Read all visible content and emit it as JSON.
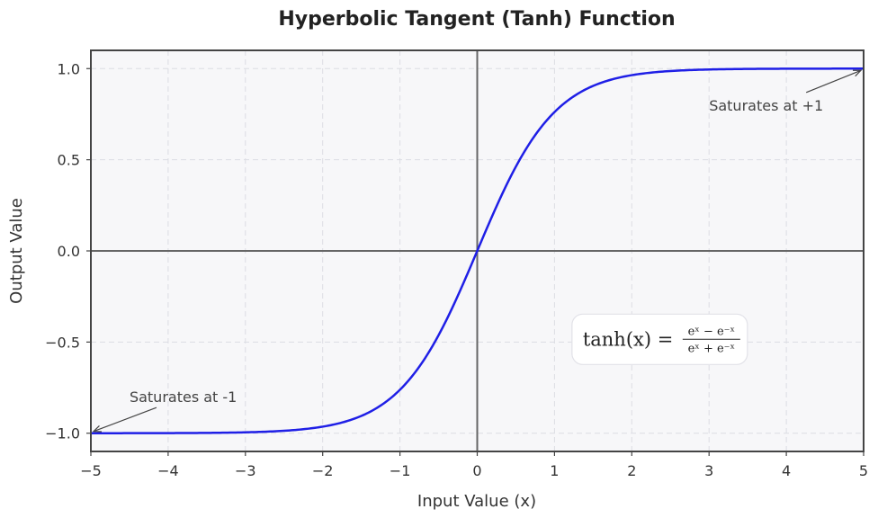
{
  "chart_data": {
    "type": "line",
    "title": "Hyperbolic Tangent (Tanh) Function",
    "xlabel": "Input Value (x)",
    "ylabel": "Output Value",
    "xlim": [
      -5,
      5
    ],
    "ylim": [
      -1.1,
      1.1
    ],
    "x_ticks": [
      -5,
      -4,
      -3,
      -2,
      -1,
      0,
      1,
      2,
      3,
      4,
      5
    ],
    "x_tick_labels": [
      "−5",
      "−4",
      "−3",
      "−2",
      "−1",
      "0",
      "1",
      "2",
      "3",
      "4",
      "5"
    ],
    "y_ticks": [
      1.0,
      0.5,
      0.0,
      -0.5,
      -1.0
    ],
    "y_tick_labels": [
      "1.0",
      "0.5",
      "0.0",
      "−0.5",
      "−1.0"
    ],
    "grid": true,
    "series": [
      {
        "color": "#1f1fe6",
        "x": [
          -5,
          -4.5,
          -4,
          -3.5,
          -3,
          -2.5,
          -2,
          -1.75,
          -1.5,
          -1.25,
          -1,
          -0.75,
          -0.5,
          -0.25,
          0,
          0.25,
          0.5,
          0.75,
          1,
          1.25,
          1.5,
          1.75,
          2,
          2.5,
          3,
          3.5,
          4,
          4.5,
          5
        ],
        "y": [
          -0.9999,
          -0.9998,
          -0.9993,
          -0.9982,
          -0.9951,
          -0.9866,
          -0.964,
          -0.9413,
          -0.9051,
          -0.8483,
          -0.7616,
          -0.6351,
          -0.4621,
          -0.2449,
          0.0,
          0.2449,
          0.4621,
          0.6351,
          0.7616,
          0.8483,
          0.9051,
          0.9413,
          0.964,
          0.9866,
          0.9951,
          0.9982,
          0.9993,
          0.9998,
          0.9999
        ]
      }
    ],
    "annotations": [
      {
        "text": "Saturates at +1",
        "point": [
          5,
          1
        ],
        "text_at": [
          3.0,
          0.8
        ]
      },
      {
        "text": "Saturates at -1",
        "point": [
          -5,
          -1
        ],
        "text_at": [
          -4.5,
          -0.8
        ]
      }
    ],
    "formula": {
      "lhs": "tanh(x) =",
      "num": "eˣ − e⁻ˣ",
      "den": "eˣ + e⁻ˣ",
      "position": [
        2.6,
        -0.48
      ]
    },
    "colors": {
      "plot_background": "#f7f7f9",
      "frame": "#444444",
      "zero_lines": "#666666",
      "grid": "#dcdde3"
    }
  }
}
